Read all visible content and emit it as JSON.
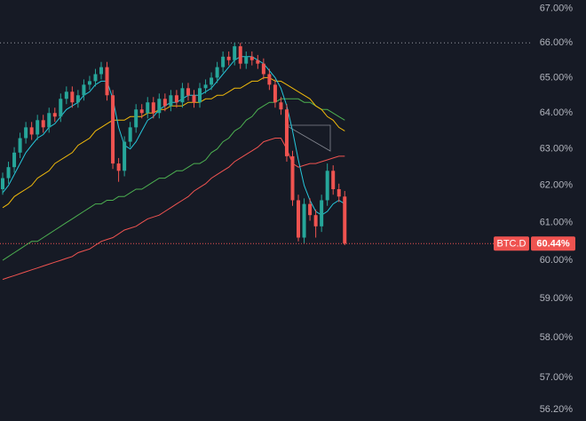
{
  "chart_data": {
    "type": "candlestick",
    "log_scale": true,
    "ylim": [
      55.92,
      67.25
    ],
    "yticks": [
      {
        "value": 67,
        "label": "67.00%"
      },
      {
        "value": 66,
        "label": "66.00%"
      },
      {
        "value": 65,
        "label": "65.00%"
      },
      {
        "value": 64,
        "label": "64.00%"
      },
      {
        "value": 63,
        "label": "63.00%"
      },
      {
        "value": 62,
        "label": "62.00%"
      },
      {
        "value": 61,
        "label": "61.00%"
      },
      {
        "value": 60,
        "label": "60.00%"
      },
      {
        "value": 59,
        "label": "59.00%"
      },
      {
        "value": 58,
        "label": "58.00%"
      },
      {
        "value": 57,
        "label": "57.00%"
      },
      {
        "value": 56.2,
        "label": "56.20%"
      }
    ],
    "grid": false,
    "up_color": "#26a69a",
    "down_color": "#ef5350",
    "open": [
      61.9,
      62.2,
      62.5,
      62.9,
      63.3,
      63.6,
      63.4,
      63.8,
      63.6,
      64.0,
      63.9,
      64.4,
      64.6,
      64.3,
      64.5,
      64.8,
      64.9,
      65.1,
      65.3,
      64.5,
      62.6,
      62.4,
      63.2,
      63.6,
      64.1,
      64.0,
      64.3,
      64.0,
      64.4,
      64.2,
      64.5,
      64.3,
      64.7,
      64.5,
      64.3,
      64.7,
      64.8,
      65.0,
      65.3,
      65.6,
      65.5,
      65.9,
      65.4,
      65.6,
      65.5,
      65.4,
      65.1,
      64.8,
      64.3,
      64.1,
      62.8,
      61.6,
      60.6,
      61.5,
      61.2,
      60.9,
      61.6,
      62.4,
      61.9,
      61.7
    ],
    "high": [
      62.35,
      62.65,
      63.05,
      63.45,
      63.75,
      63.75,
      63.95,
      63.95,
      64.15,
      64.15,
      64.55,
      64.75,
      64.75,
      64.65,
      64.95,
      65.05,
      65.25,
      65.45,
      65.45,
      64.65,
      62.75,
      63.35,
      63.75,
      64.25,
      64.25,
      64.45,
      64.45,
      64.55,
      64.55,
      64.65,
      64.65,
      64.85,
      64.85,
      64.65,
      64.85,
      64.95,
      65.15,
      65.45,
      65.75,
      65.75,
      66.0,
      66.0,
      65.75,
      65.75,
      65.65,
      65.55,
      65.25,
      64.95,
      64.45,
      64.25,
      62.95,
      61.75,
      61.65,
      61.65,
      61.35,
      61.75,
      62.6,
      62.55,
      62.05,
      61.85
    ],
    "low": [
      61.75,
      62.05,
      62.35,
      62.75,
      63.15,
      63.25,
      63.25,
      63.45,
      63.45,
      63.75,
      63.75,
      64.25,
      64.15,
      64.15,
      64.35,
      64.65,
      64.75,
      64.95,
      64.35,
      62.45,
      62.1,
      62.25,
      63.05,
      63.45,
      63.85,
      63.85,
      63.85,
      63.85,
      64.05,
      64.05,
      64.15,
      64.15,
      64.35,
      64.15,
      64.15,
      64.55,
      64.65,
      64.85,
      65.15,
      65.35,
      65.35,
      65.25,
      65.25,
      65.35,
      65.25,
      64.95,
      64.65,
      64.15,
      63.95,
      62.65,
      61.45,
      60.5,
      60.45,
      61.05,
      60.6,
      60.75,
      61.45,
      61.75,
      61.55,
      60.4
    ],
    "close": [
      62.2,
      62.5,
      62.9,
      63.3,
      63.6,
      63.4,
      63.8,
      63.6,
      64.0,
      63.9,
      64.4,
      64.6,
      64.3,
      64.5,
      64.8,
      64.9,
      65.1,
      65.3,
      64.5,
      62.6,
      62.4,
      63.2,
      63.6,
      64.1,
      64.0,
      64.3,
      64.0,
      64.4,
      64.2,
      64.5,
      64.3,
      64.7,
      64.5,
      64.3,
      64.7,
      64.8,
      65.0,
      65.3,
      65.6,
      65.5,
      65.9,
      65.4,
      65.6,
      65.5,
      65.4,
      65.1,
      64.8,
      64.3,
      64.1,
      62.8,
      61.6,
      60.6,
      61.5,
      61.2,
      60.9,
      61.6,
      62.4,
      61.9,
      61.7,
      60.44
    ],
    "lines": [
      {
        "color": "#ef5350",
        "values": [
          59.5,
          59.55,
          59.6,
          59.65,
          59.7,
          59.75,
          59.8,
          59.85,
          59.9,
          59.95,
          60.0,
          60.05,
          60.1,
          60.2,
          60.25,
          60.3,
          60.4,
          60.5,
          60.55,
          60.6,
          60.7,
          60.8,
          60.85,
          60.9,
          61.0,
          61.1,
          61.15,
          61.2,
          61.3,
          61.4,
          61.5,
          61.6,
          61.7,
          61.85,
          61.95,
          62.05,
          62.2,
          62.3,
          62.4,
          62.5,
          62.65,
          62.75,
          62.85,
          62.95,
          63.05,
          63.2,
          63.25,
          63.3,
          63.3,
          63.0,
          62.6,
          62.5,
          62.55,
          62.6,
          62.6,
          62.65,
          62.7,
          62.75,
          62.8,
          62.8
        ]
      },
      {
        "color": "#4caf50",
        "values": [
          60.0,
          60.1,
          60.2,
          60.3,
          60.4,
          60.5,
          60.5,
          60.6,
          60.7,
          60.8,
          60.9,
          61.0,
          61.1,
          61.2,
          61.3,
          61.4,
          61.5,
          61.5,
          61.6,
          61.6,
          61.7,
          61.7,
          61.8,
          61.9,
          61.9,
          62.0,
          62.1,
          62.2,
          62.2,
          62.3,
          62.4,
          62.4,
          62.5,
          62.6,
          62.6,
          62.7,
          62.9,
          63.0,
          63.2,
          63.3,
          63.5,
          63.6,
          63.8,
          63.9,
          64.1,
          64.2,
          64.3,
          64.3,
          64.4,
          64.4,
          64.4,
          64.4,
          64.3,
          64.3,
          64.2,
          64.1,
          64.1,
          64.0,
          63.9,
          63.8
        ]
      },
      {
        "color": "#f0b90b",
        "values": [
          61.4,
          61.5,
          61.7,
          61.8,
          61.9,
          62.0,
          62.2,
          62.3,
          62.4,
          62.6,
          62.7,
          62.8,
          62.9,
          63.1,
          63.2,
          63.3,
          63.5,
          63.6,
          63.7,
          63.8,
          63.8,
          63.8,
          63.9,
          63.9,
          63.9,
          64.0,
          64.0,
          64.1,
          64.1,
          64.2,
          64.2,
          64.2,
          64.3,
          64.3,
          64.3,
          64.4,
          64.4,
          64.5,
          64.5,
          64.6,
          64.7,
          64.7,
          64.8,
          64.9,
          64.9,
          65.0,
          65.0,
          64.9,
          64.9,
          64.8,
          64.7,
          64.6,
          64.5,
          64.4,
          64.2,
          64.1,
          63.9,
          63.8,
          63.6,
          63.5
        ]
      },
      {
        "color": "#26c6da",
        "values": [
          61.8,
          62.0,
          62.3,
          62.6,
          62.9,
          63.1,
          63.3,
          63.4,
          63.6,
          63.7,
          63.9,
          64.1,
          64.2,
          64.3,
          64.5,
          64.6,
          64.8,
          64.9,
          64.9,
          64.4,
          63.6,
          63.1,
          63.0,
          63.2,
          63.5,
          63.8,
          63.9,
          64.1,
          64.2,
          64.3,
          64.3,
          64.4,
          64.5,
          64.5,
          64.5,
          64.6,
          64.7,
          64.9,
          65.1,
          65.3,
          65.5,
          65.6,
          65.6,
          65.6,
          65.5,
          65.4,
          65.2,
          65.0,
          64.7,
          64.2,
          63.5,
          62.7,
          62.0,
          61.6,
          61.3,
          61.2,
          61.3,
          61.5,
          61.6,
          61.5
        ]
      }
    ],
    "hline": 66,
    "symbol": "BTC.D",
    "last_price": {
      "value": 60.44,
      "label": "60.44%"
    }
  }
}
